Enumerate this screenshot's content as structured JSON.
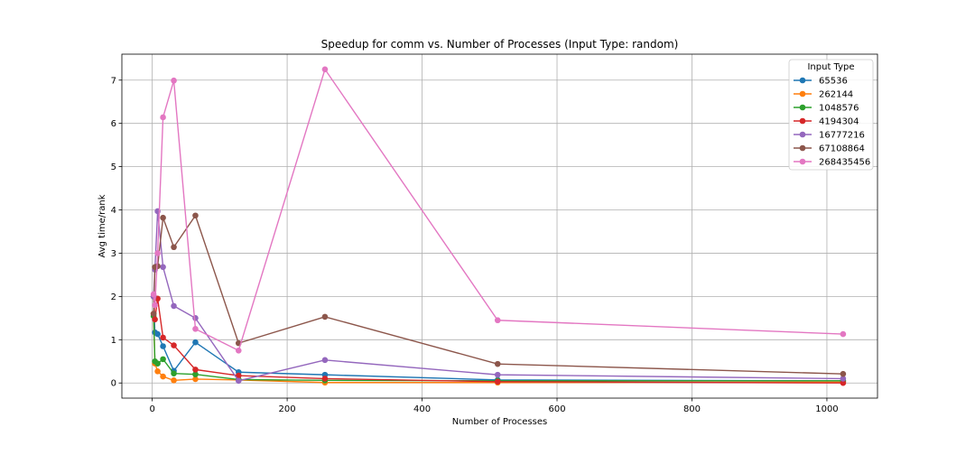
{
  "chart_data": {
    "type": "line",
    "title": "Speedup for comm vs. Number of Processes (Input Type: random)",
    "xlabel": "Number of Processes",
    "ylabel": "Avg time/rank",
    "xlim": [
      -45,
      1075
    ],
    "ylim": [
      -0.35,
      7.6
    ],
    "xticks": [
      0,
      200,
      400,
      600,
      800,
      1000
    ],
    "yticks": [
      0,
      1,
      2,
      3,
      4,
      5,
      6,
      7
    ],
    "grid": true,
    "legend": {
      "title": "Input Type",
      "position": "top-right"
    },
    "x": [
      2,
      4,
      8,
      16,
      32,
      64,
      128,
      256,
      512,
      1024
    ],
    "series": [
      {
        "name": "65536",
        "color": "#1f77b4",
        "values": [
          2.0,
          1.17,
          1.13,
          0.85,
          0.28,
          0.94,
          0.25,
          0.19,
          0.07,
          0.05
        ]
      },
      {
        "name": "262144",
        "color": "#ff7f0e",
        "values": [
          1.6,
          0.45,
          0.27,
          0.15,
          0.06,
          0.09,
          0.07,
          0.01,
          0.01,
          0.02
        ]
      },
      {
        "name": "1048576",
        "color": "#2ca02c",
        "values": [
          1.55,
          0.5,
          0.45,
          0.55,
          0.22,
          0.2,
          0.08,
          0.06,
          0.05,
          0.05
        ]
      },
      {
        "name": "4194304",
        "color": "#d62728",
        "values": [
          2.0,
          1.47,
          1.95,
          1.05,
          0.87,
          0.31,
          0.17,
          0.1,
          0.03,
          0.0
        ]
      },
      {
        "name": "16777216",
        "color": "#9467bd",
        "values": [
          2.0,
          2.62,
          3.97,
          2.68,
          1.78,
          1.5,
          0.05,
          0.53,
          0.19,
          0.1
        ]
      },
      {
        "name": "67108864",
        "color": "#8c564b",
        "values": [
          1.6,
          2.68,
          2.7,
          3.82,
          3.14,
          3.87,
          0.92,
          1.53,
          0.44,
          0.21
        ]
      },
      {
        "name": "268435456",
        "color": "#e377c2",
        "values": [
          2.05,
          1.8,
          3.0,
          6.14,
          6.99,
          1.25,
          0.75,
          7.25,
          1.45,
          1.13
        ]
      }
    ]
  }
}
